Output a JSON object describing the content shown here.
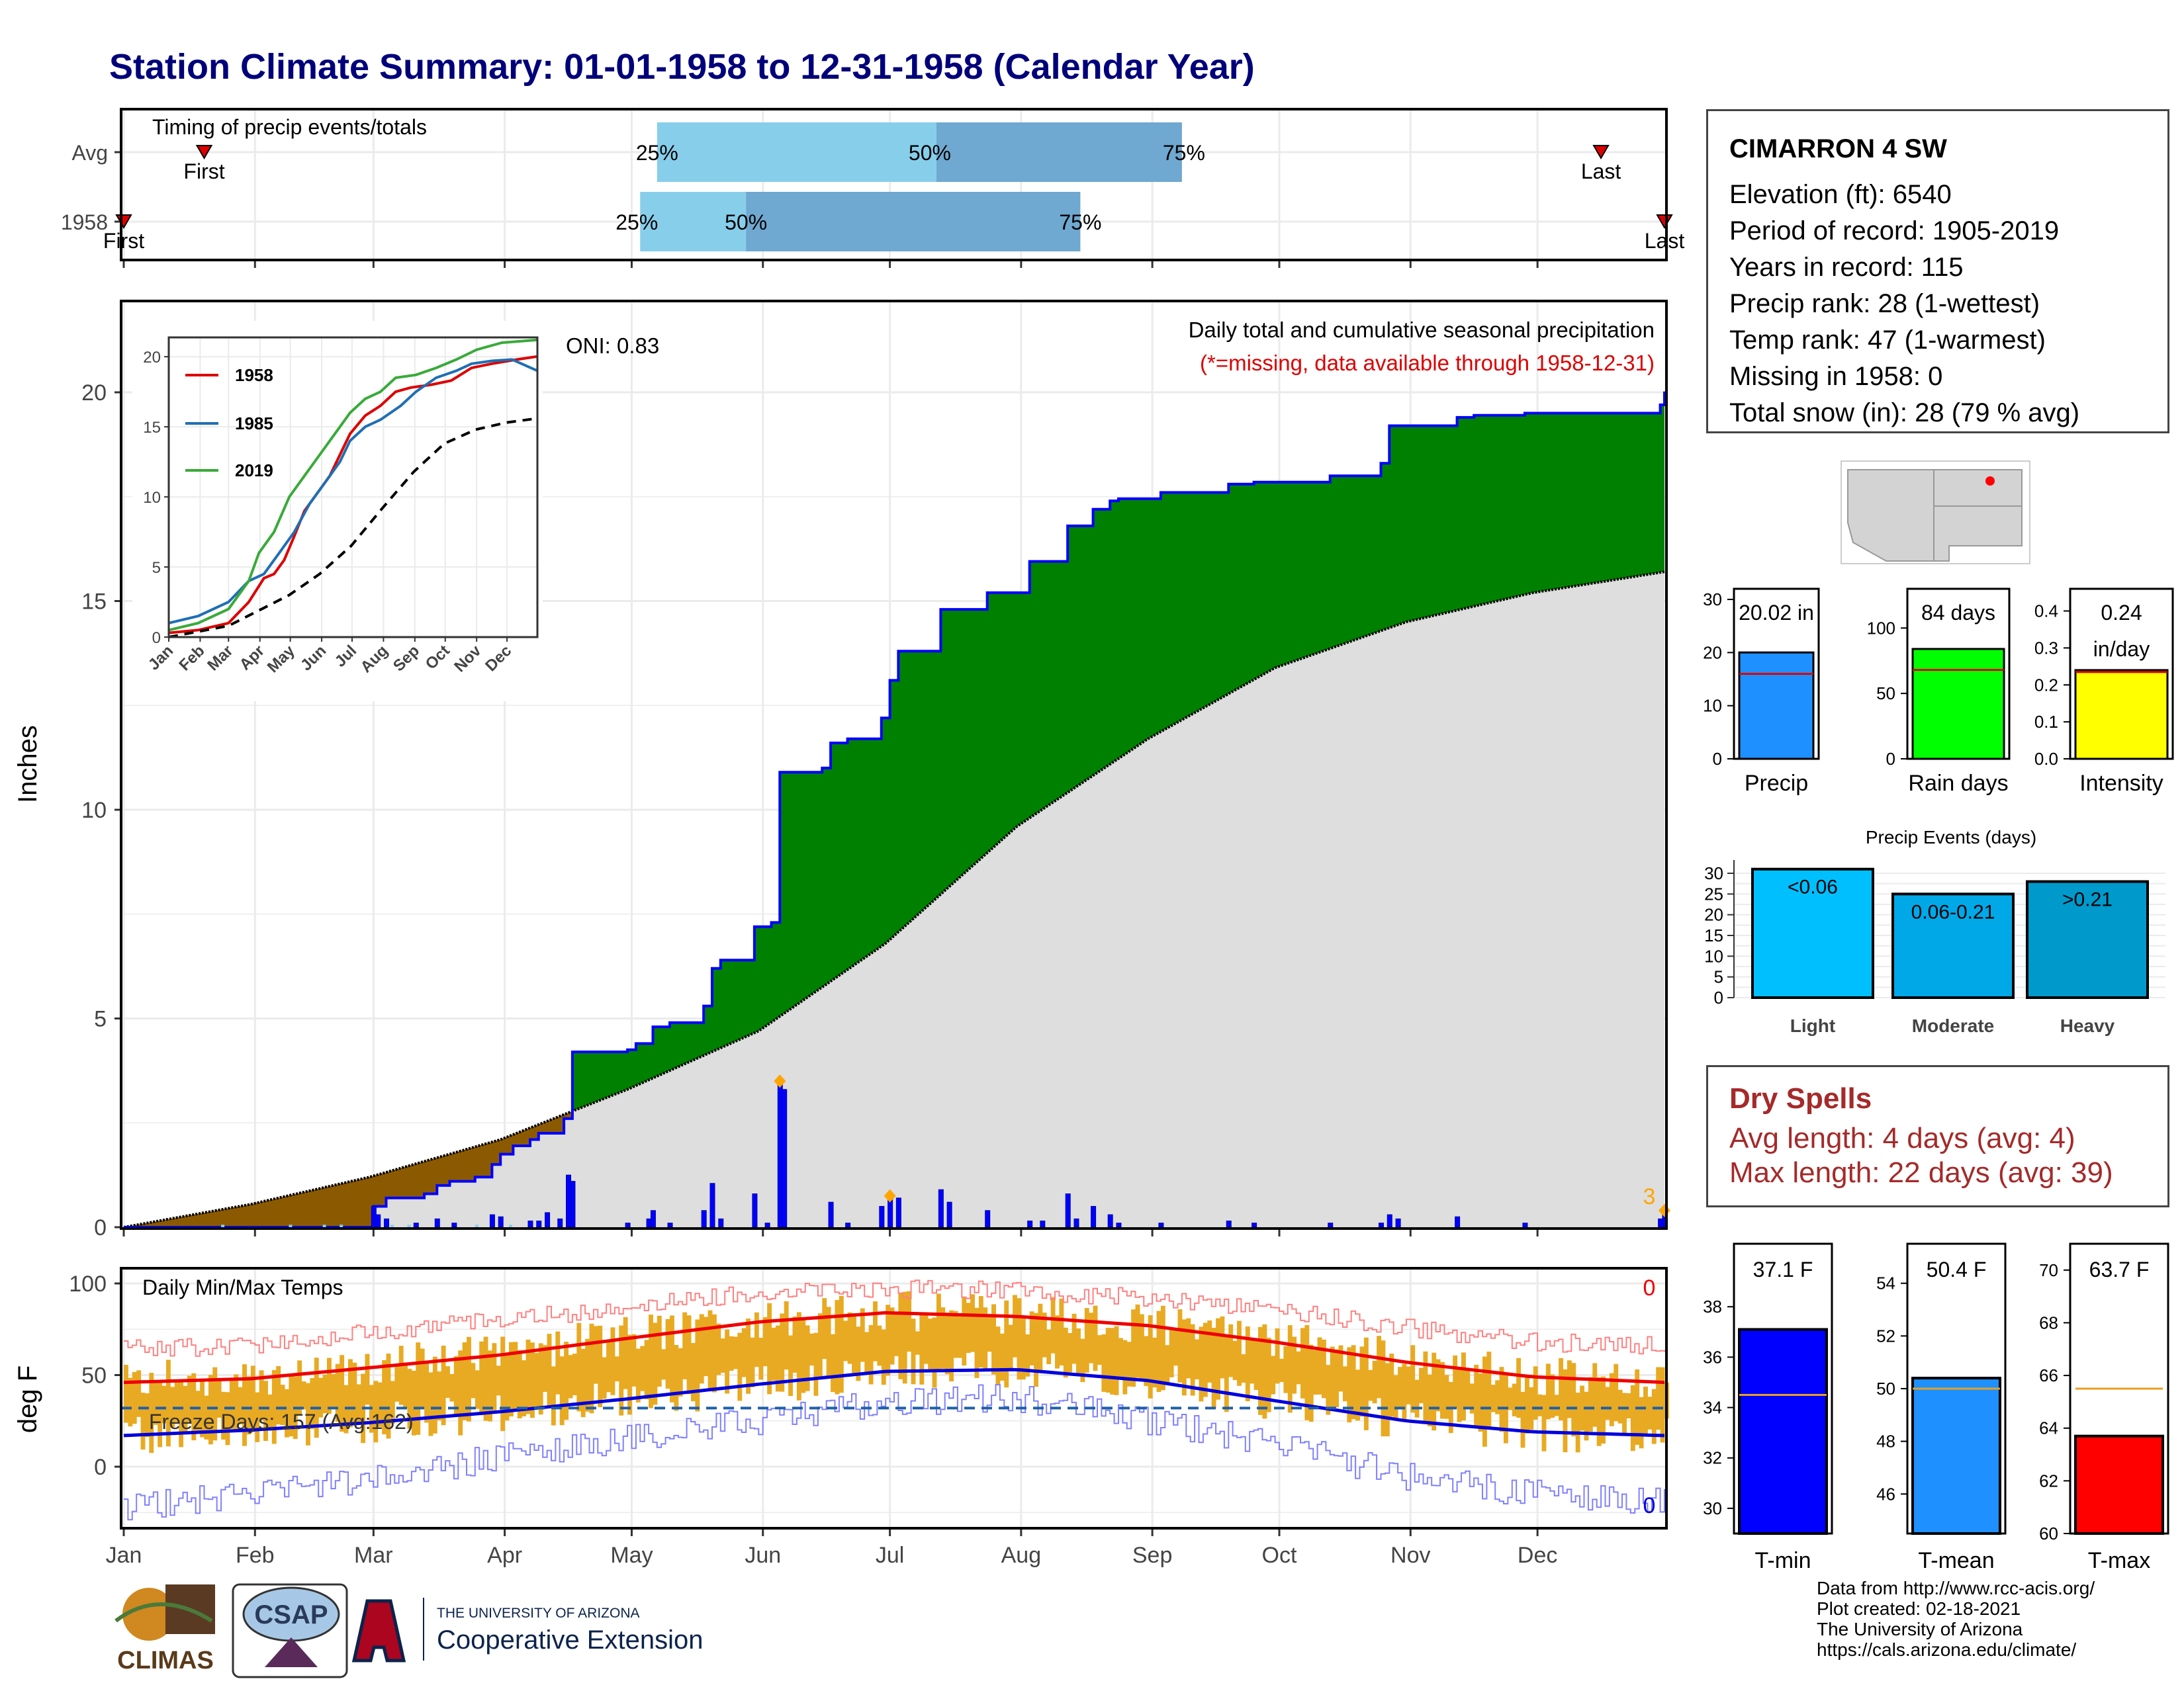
{
  "title": "Station Climate Summary: 01-01-1958 to 12-31-1958 (Calendar Year)",
  "timing": {
    "label": "Timing of precip events/totals",
    "rows": [
      {
        "name": "Avg",
        "first_day": 20,
        "last_day": 350,
        "p25_day": 127,
        "p50_day": 193,
        "p75_day": 251
      },
      {
        "name": "1958",
        "first_day": 1,
        "last_day": 365,
        "p25_day": 123,
        "p50_day": 148,
        "p75_day": 227
      }
    ],
    "first_label": "First",
    "last_label": "Last",
    "pct_labels": [
      "25%",
      "50%",
      "75%"
    ]
  },
  "months": [
    "Jan",
    "Feb",
    "Mar",
    "Apr",
    "May",
    "Jun",
    "Jul",
    "Aug",
    "Sep",
    "Oct",
    "Nov",
    "Dec"
  ],
  "precip": {
    "ylabel": "Inches",
    "yticks": [
      0,
      5,
      10,
      15,
      20
    ],
    "ylim": [
      0,
      21.5
    ],
    "oni": "ONI: 0.83",
    "title": "Daily total and cumulative seasonal precipitation",
    "missing_note": "(*=missing, data available through 1958-12-31)",
    "orange_count": "3",
    "colors": {
      "above": "#008000",
      "below": "#8b5a00",
      "line": "#0000ff",
      "normal_fill": "#dedede"
    },
    "chart_data": {
      "type": "area",
      "cumulative_observed_steps": [
        [
          1,
          0
        ],
        [
          60,
          0.5
        ],
        [
          63,
          0.7
        ],
        [
          72,
          0.8
        ],
        [
          75,
          1.0
        ],
        [
          78,
          1.1
        ],
        [
          84,
          1.2
        ],
        [
          88,
          1.5
        ],
        [
          90,
          1.75
        ],
        [
          93,
          1.95
        ],
        [
          97,
          2.1
        ],
        [
          99,
          2.25
        ],
        [
          105,
          2.6
        ],
        [
          107,
          4.2
        ],
        [
          120,
          4.25
        ],
        [
          122,
          4.4
        ],
        [
          126,
          4.8
        ],
        [
          130,
          4.9
        ],
        [
          138,
          5.3
        ],
        [
          140,
          6.2
        ],
        [
          142,
          6.4
        ],
        [
          150,
          7.2
        ],
        [
          154,
          7.3
        ],
        [
          156,
          10.9
        ],
        [
          166,
          11.0
        ],
        [
          168,
          11.6
        ],
        [
          172,
          11.7
        ],
        [
          180,
          12.2
        ],
        [
          182,
          13.1
        ],
        [
          184,
          13.8
        ],
        [
          194,
          14.8
        ],
        [
          205,
          15.2
        ],
        [
          215,
          15.95
        ],
        [
          224,
          16.8
        ],
        [
          230,
          17.2
        ],
        [
          234,
          17.4
        ],
        [
          236,
          17.45
        ],
        [
          246,
          17.6
        ],
        [
          262,
          17.8
        ],
        [
          268,
          17.85
        ],
        [
          286,
          18.0
        ],
        [
          298,
          18.3
        ],
        [
          300,
          19.2
        ],
        [
          316,
          19.4
        ],
        [
          320,
          19.45
        ],
        [
          332,
          19.5
        ],
        [
          364,
          19.7
        ],
        [
          365,
          20.02
        ]
      ],
      "normal_cumulative": [
        [
          1,
          0
        ],
        [
          31,
          0.55
        ],
        [
          59,
          1.2
        ],
        [
          90,
          2.1
        ],
        [
          120,
          3.3
        ],
        [
          151,
          4.7
        ],
        [
          181,
          6.8
        ],
        [
          212,
          9.6
        ],
        [
          243,
          11.7
        ],
        [
          273,
          13.4
        ],
        [
          304,
          14.5
        ],
        [
          334,
          15.2
        ],
        [
          365,
          15.7
        ]
      ],
      "daily_bars": [
        [
          60,
          0.5
        ],
        [
          61,
          0.3
        ],
        [
          63,
          0.2
        ],
        [
          70,
          0.1
        ],
        [
          75,
          0.2
        ],
        [
          79,
          0.1
        ],
        [
          88,
          0.3
        ],
        [
          90,
          0.25
        ],
        [
          97,
          0.15
        ],
        [
          99,
          0.15
        ],
        [
          101,
          0.35
        ],
        [
          104,
          0.2
        ],
        [
          106,
          1.25
        ],
        [
          107,
          1.1
        ],
        [
          120,
          0.1
        ],
        [
          125,
          0.2
        ],
        [
          126,
          0.4
        ],
        [
          130,
          0.1
        ],
        [
          138,
          0.4
        ],
        [
          140,
          1.05
        ],
        [
          142,
          0.2
        ],
        [
          150,
          0.8
        ],
        [
          153,
          0.1
        ],
        [
          156,
          3.5
        ],
        [
          157,
          3.3
        ],
        [
          168,
          0.6
        ],
        [
          172,
          0.1
        ],
        [
          180,
          0.5
        ],
        [
          182,
          0.7
        ],
        [
          184,
          0.7
        ],
        [
          194,
          0.9
        ],
        [
          196,
          0.6
        ],
        [
          205,
          0.4
        ],
        [
          215,
          0.15
        ],
        [
          218,
          0.15
        ],
        [
          224,
          0.8
        ],
        [
          226,
          0.2
        ],
        [
          230,
          0.5
        ],
        [
          234,
          0.3
        ],
        [
          236,
          0.1
        ],
        [
          246,
          0.1
        ],
        [
          262,
          0.15
        ],
        [
          268,
          0.1
        ],
        [
          286,
          0.1
        ],
        [
          298,
          0.1
        ],
        [
          300,
          0.3
        ],
        [
          302,
          0.2
        ],
        [
          316,
          0.25
        ],
        [
          332,
          0.1
        ],
        [
          364,
          0.2
        ],
        [
          365,
          0.35
        ]
      ],
      "orange_points": [
        [
          156,
          3.5
        ],
        [
          182,
          0.75
        ],
        [
          365,
          0.4
        ]
      ]
    }
  },
  "inset": {
    "yticks": [
      0,
      5,
      10,
      15,
      20
    ],
    "series": [
      {
        "name": "1958",
        "color": "#dd0000",
        "values": [
          [
            1,
            0.3
          ],
          [
            30,
            0.5
          ],
          [
            60,
            1.0
          ],
          [
            80,
            2.5
          ],
          [
            95,
            4.2
          ],
          [
            105,
            4.5
          ],
          [
            115,
            5.5
          ],
          [
            125,
            7.2
          ],
          [
            135,
            9.0
          ],
          [
            150,
            10.5
          ],
          [
            160,
            11.5
          ],
          [
            170,
            13.0
          ],
          [
            180,
            14.5
          ],
          [
            195,
            15.8
          ],
          [
            210,
            16.5
          ],
          [
            225,
            17.5
          ],
          [
            240,
            17.8
          ],
          [
            260,
            18.0
          ],
          [
            280,
            18.3
          ],
          [
            300,
            19.2
          ],
          [
            320,
            19.5
          ],
          [
            345,
            19.8
          ],
          [
            365,
            20.02
          ]
        ]
      },
      {
        "name": "1985",
        "color": "#1f6fb4",
        "values": [
          [
            1,
            1.0
          ],
          [
            30,
            1.5
          ],
          [
            60,
            2.5
          ],
          [
            80,
            4.0
          ],
          [
            95,
            4.5
          ],
          [
            110,
            6.0
          ],
          [
            125,
            7.5
          ],
          [
            140,
            9.5
          ],
          [
            155,
            11.0
          ],
          [
            170,
            12.5
          ],
          [
            180,
            14.0
          ],
          [
            195,
            15.0
          ],
          [
            210,
            15.5
          ],
          [
            230,
            16.5
          ],
          [
            245,
            17.5
          ],
          [
            265,
            18.5
          ],
          [
            285,
            19.0
          ],
          [
            300,
            19.5
          ],
          [
            320,
            19.7
          ],
          [
            340,
            19.8
          ],
          [
            365,
            19.0
          ]
        ]
      },
      {
        "name": "2019",
        "color": "#3aaa3a",
        "values": [
          [
            1,
            0.5
          ],
          [
            30,
            1.0
          ],
          [
            60,
            2.0
          ],
          [
            80,
            4.0
          ],
          [
            90,
            6.0
          ],
          [
            105,
            7.5
          ],
          [
            120,
            10.0
          ],
          [
            135,
            11.5
          ],
          [
            150,
            13.0
          ],
          [
            165,
            14.5
          ],
          [
            180,
            16.0
          ],
          [
            195,
            17.0
          ],
          [
            210,
            17.5
          ],
          [
            225,
            18.5
          ],
          [
            245,
            18.7
          ],
          [
            265,
            19.2
          ],
          [
            285,
            19.8
          ],
          [
            305,
            20.5
          ],
          [
            330,
            21.0
          ],
          [
            365,
            21.2
          ]
        ]
      },
      {
        "name": "normal",
        "color": "#000000",
        "dashed": true,
        "values": [
          [
            1,
            0.0
          ],
          [
            60,
            0.8
          ],
          [
            120,
            3.0
          ],
          [
            150,
            4.5
          ],
          [
            181,
            6.5
          ],
          [
            212,
            9.2
          ],
          [
            243,
            11.8
          ],
          [
            273,
            13.8
          ],
          [
            304,
            14.8
          ],
          [
            334,
            15.3
          ],
          [
            365,
            15.6
          ]
        ]
      }
    ]
  },
  "temp": {
    "ylabel": "deg F",
    "title": "Daily Min/Max Temps",
    "freeze": "Freeze Days: 157 (Avg:162)",
    "yticks": [
      0,
      50,
      100
    ],
    "ylim": [
      -35,
      110
    ],
    "red_count": "0",
    "blue_count": "0",
    "freeze_line": 32,
    "chart_data": {
      "type": "line",
      "normal_max": [
        [
          1,
          46
        ],
        [
          31,
          48
        ],
        [
          59,
          54
        ],
        [
          90,
          61
        ],
        [
          120,
          70
        ],
        [
          151,
          79
        ],
        [
          181,
          84
        ],
        [
          212,
          82
        ],
        [
          243,
          77
        ],
        [
          273,
          68
        ],
        [
          304,
          57
        ],
        [
          334,
          49
        ],
        [
          365,
          46
        ]
      ],
      "normal_min": [
        [
          1,
          17
        ],
        [
          31,
          20
        ],
        [
          59,
          24
        ],
        [
          90,
          30
        ],
        [
          120,
          37
        ],
        [
          151,
          45
        ],
        [
          181,
          52
        ],
        [
          212,
          53
        ],
        [
          243,
          47
        ],
        [
          273,
          36
        ],
        [
          304,
          25
        ],
        [
          334,
          19
        ],
        [
          365,
          17
        ]
      ],
      "record_max": [
        [
          1,
          64
        ],
        [
          31,
          66
        ],
        [
          59,
          73
        ],
        [
          90,
          80
        ],
        [
          120,
          87
        ],
        [
          151,
          95
        ],
        [
          181,
          97
        ],
        [
          212,
          96
        ],
        [
          243,
          92
        ],
        [
          273,
          86
        ],
        [
          304,
          76
        ],
        [
          334,
          68
        ],
        [
          365,
          66
        ]
      ],
      "record_min": [
        [
          1,
          -22
        ],
        [
          31,
          -15
        ],
        [
          59,
          -8
        ],
        [
          90,
          5
        ],
        [
          120,
          15
        ],
        [
          151,
          25
        ],
        [
          181,
          35
        ],
        [
          212,
          38
        ],
        [
          243,
          25
        ],
        [
          273,
          12
        ],
        [
          304,
          -5
        ],
        [
          334,
          -15
        ],
        [
          365,
          -20
        ]
      ]
    }
  },
  "stats": {
    "station": "CIMARRON 4 SW",
    "lines": [
      "Elevation (ft): 6540",
      "Period of record: 1905-2019",
      "Years in record: 115",
      "Precip rank: 28 (1-wettest)",
      "Temp rank: 47 (1-warmest)",
      "Missing in 1958: 0",
      "Total snow (in): 28 (79 % avg)"
    ]
  },
  "mini_bars": [
    {
      "label": "Precip",
      "value_text": "20.02 in",
      "value": 20.02,
      "avg": 16.0,
      "ylim": [
        0,
        32
      ],
      "ticks": [
        0,
        10,
        20,
        30
      ],
      "color": "#1e90ff"
    },
    {
      "label": "Rain days",
      "value_text": "84 days",
      "value": 84,
      "avg": 68,
      "ylim": [
        0,
        130
      ],
      "ticks": [
        0,
        50,
        100
      ],
      "color": "#00ff00"
    },
    {
      "label": "Intensity",
      "value_text": "0.24",
      "value_text2": "in/day",
      "value": 0.24,
      "avg": 0.235,
      "ylim": [
        0,
        0.46
      ],
      "ticks": [
        0.0,
        0.1,
        0.2,
        0.3,
        0.4
      ],
      "color": "#ffff00"
    }
  ],
  "events": {
    "title": "Precip Events (days)",
    "ticks": [
      0,
      5,
      10,
      15,
      20,
      25,
      30
    ],
    "bars": [
      {
        "label": "Light",
        "range": "<0.06",
        "value": 31,
        "color": "#00bfff"
      },
      {
        "label": "Moderate",
        "range": "0.06-0.21",
        "value": 25,
        "color": "#00a8e8"
      },
      {
        "label": "Heavy",
        "range": ">0.21",
        "value": 28,
        "color": "#0099cc"
      }
    ]
  },
  "dry": {
    "head": "Dry Spells",
    "avg": "Avg length: 4 days (avg: 4)",
    "max": "Max length: 22 days (avg: 39)"
  },
  "temp_bars": [
    {
      "label": "T-min",
      "value_text": "37.1 F",
      "value": 37.1,
      "avg": 34.5,
      "ylim": [
        29,
        40.5
      ],
      "ticks": [
        30,
        32,
        34,
        36,
        38
      ],
      "color": "#0000ff"
    },
    {
      "label": "T-mean",
      "value_text": "50.4 F",
      "value": 50.4,
      "avg": 50.0,
      "ylim": [
        44.5,
        55.5
      ],
      "ticks": [
        46,
        48,
        50,
        52,
        54
      ],
      "color": "#1e90ff"
    },
    {
      "label": "T-max",
      "value_text": "63.7 F",
      "value": 63.7,
      "avg": 65.5,
      "ylim": [
        60,
        71
      ],
      "ticks": [
        60,
        62,
        64,
        66,
        68,
        70
      ],
      "color": "#ff0000"
    }
  ],
  "logos": {
    "climas": "CLIMAS",
    "csap": "CSAP",
    "ua_small": "THE UNIVERSITY OF ARIZONA",
    "ua_big": "Cooperative Extension"
  },
  "credits": [
    "Data from http://www.rcc-acis.org/",
    "Plot created: 02-18-2021",
    "The University of Arizona",
    "https://cals.arizona.edu/climate/"
  ]
}
